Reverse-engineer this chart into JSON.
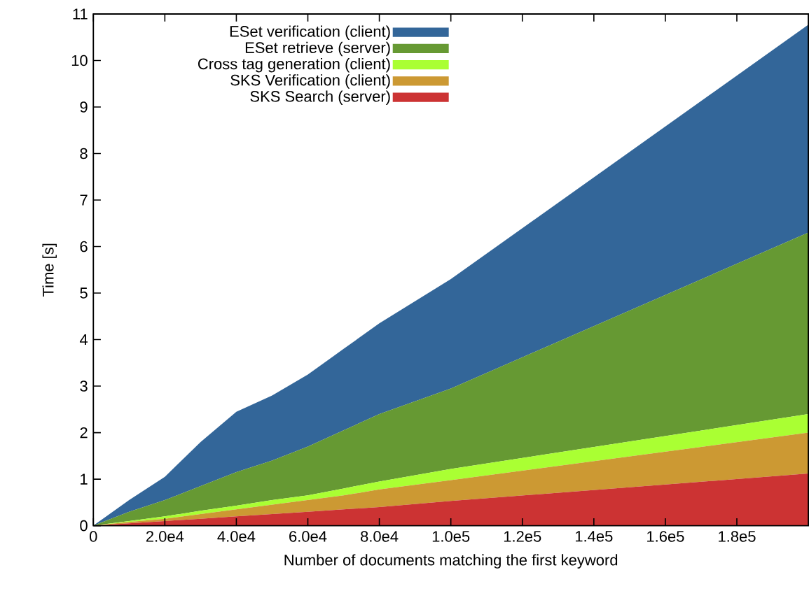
{
  "chart_data": {
    "type": "area",
    "stacked": true,
    "xlabel": "Number of documents matching the first keyword",
    "ylabel": "Time [s]",
    "x": [
      0,
      10000,
      20000,
      30000,
      40000,
      50000,
      60000,
      70000,
      80000,
      100000,
      200000
    ],
    "series": [
      {
        "name": "SKS Search (server)",
        "color": "#cc3333",
        "values": [
          0,
          0.05,
          0.1,
          0.15,
          0.2,
          0.25,
          0.3,
          0.35,
          0.4,
          0.53,
          1.12
        ]
      },
      {
        "name": "SKS Verification (client)",
        "color": "#cc9933",
        "values": [
          0,
          0.03,
          0.05,
          0.1,
          0.15,
          0.2,
          0.25,
          0.3,
          0.38,
          0.45,
          0.88
        ]
      },
      {
        "name": "Cross tag generation (client)",
        "color": "#aaff33",
        "values": [
          0,
          0.02,
          0.05,
          0.07,
          0.08,
          0.1,
          0.1,
          0.15,
          0.17,
          0.24,
          0.4
        ]
      },
      {
        "name": "ESet retrieve (server)",
        "color": "#669933",
        "values": [
          0,
          0.2,
          0.35,
          0.53,
          0.72,
          0.85,
          1.05,
          1.25,
          1.45,
          1.73,
          3.9
        ]
      },
      {
        "name": "ESet verification (client)",
        "color": "#336699",
        "values": [
          0,
          0.25,
          0.5,
          0.95,
          1.3,
          1.4,
          1.55,
          1.75,
          1.95,
          2.35,
          4.47
        ]
      }
    ],
    "xlim": [
      0,
      200000
    ],
    "ylim": [
      0,
      11
    ],
    "xticks": [
      0,
      {
        "value": 20000,
        "label": "2.0e4"
      },
      {
        "value": 40000,
        "label": "4.0e4"
      },
      {
        "value": 60000,
        "label": "6.0e4"
      },
      {
        "value": 80000,
        "label": "8.0e4"
      },
      {
        "value": 100000,
        "label": "1.0e5"
      },
      {
        "value": 120000,
        "label": "1.2e5"
      },
      {
        "value": 140000,
        "label": "1.4e5"
      },
      {
        "value": 160000,
        "label": "1.6e5"
      },
      {
        "value": 180000,
        "label": "1.8e5"
      }
    ],
    "yticks": [
      0,
      1,
      2,
      3,
      4,
      5,
      6,
      7,
      8,
      9,
      10,
      11
    ],
    "grid": false,
    "legend": "top"
  }
}
